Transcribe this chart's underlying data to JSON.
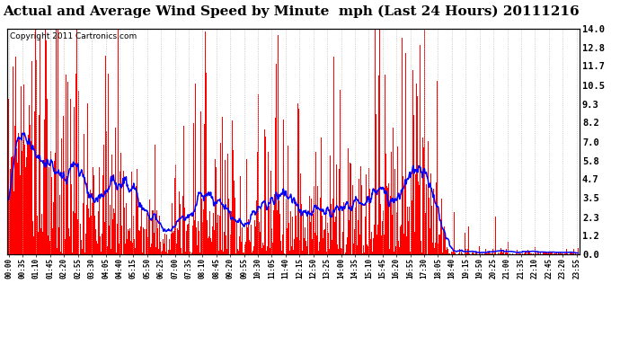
{
  "title": "Actual and Average Wind Speed by Minute  mph (Last 24 Hours) 20111216",
  "copyright": "Copyright 2011 Cartronics.com",
  "yticks": [
    0.0,
    1.2,
    2.3,
    3.5,
    4.7,
    5.8,
    7.0,
    8.2,
    9.3,
    10.5,
    11.7,
    12.8,
    14.0
  ],
  "ymax": 14.0,
  "ymin": 0.0,
  "bg_color": "#ffffff",
  "bar_color": "#ff0000",
  "line_color": "#0000ff",
  "grid_color": "#bbbbbb",
  "title_fontsize": 11,
  "copyright_fontsize": 6.5,
  "xtick_fontsize": 5.5,
  "ytick_fontsize": 7.5
}
